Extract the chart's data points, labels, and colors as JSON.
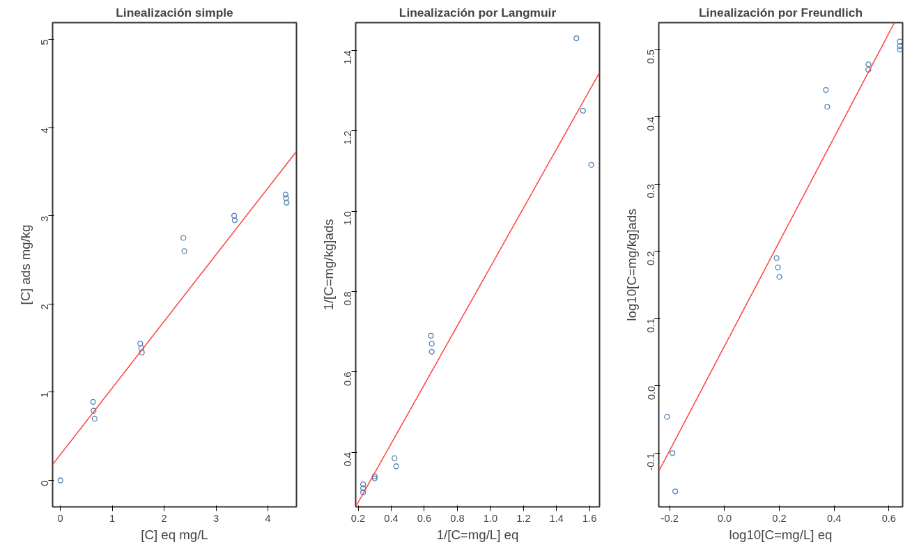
{
  "chart_data": [
    {
      "type": "scatter",
      "title": "Linealización simple",
      "xlabel": "[C] eq mg/L",
      "ylabel": "[C] ads mg/kg",
      "xlim": [
        -0.15,
        4.55
      ],
      "ylim": [
        -0.3,
        5.19
      ],
      "xticks": [
        0,
        1,
        2,
        3,
        4
      ],
      "yticks": [
        0,
        1,
        2,
        3,
        4,
        5
      ],
      "grid": false,
      "series": [
        {
          "marker": "circle",
          "color": "#4f7fb5",
          "x": [
            0,
            0.63,
            0.64,
            0.66,
            1.54,
            1.56,
            1.57,
            2.37,
            2.39,
            3.35,
            3.36,
            4.34,
            4.35,
            4.36
          ],
          "values": [
            0,
            0.89,
            0.79,
            0.7,
            1.55,
            1.5,
            1.45,
            2.75,
            2.6,
            3.0,
            2.95,
            3.24,
            3.2,
            3.15
          ]
        },
        {
          "type": "line",
          "marker": "none",
          "color": "#ff4040",
          "x": [
            -0.15,
            4.55
          ],
          "values": [
            0.18,
            3.73
          ]
        }
      ]
    },
    {
      "type": "scatter",
      "title": "Linealización por Langmuir",
      "xlabel": "1/[C=mg/L] eq",
      "ylabel": "1/[C=mg/kg]ads",
      "xlim": [
        0.185,
        1.66
      ],
      "ylim": [
        0.264,
        1.469
      ],
      "xticks": [
        0.2,
        0.4,
        0.6,
        0.8,
        {
          "value": 1,
          "label": "1.0"
        },
        1.2,
        1.4,
        1.6
      ],
      "yticks": [
        0.4,
        0.6,
        0.8,
        {
          "value": 1,
          "label": "1.0"
        },
        1.2,
        1.4
      ],
      "grid": false,
      "series": [
        {
          "marker": "circle",
          "color": "#4f7fb5",
          "x": [
            0.23,
            0.23,
            0.23,
            0.3,
            0.3,
            0.42,
            0.43,
            0.64,
            0.645,
            0.645,
            1.52,
            1.56,
            1.61
          ],
          "values": [
            0.31,
            0.3,
            0.32,
            0.34,
            0.335,
            0.385,
            0.365,
            0.69,
            0.67,
            0.65,
            1.43,
            1.25,
            1.115
          ]
        },
        {
          "type": "line",
          "marker": "none",
          "color": "#ff4040",
          "x": [
            0.185,
            1.66
          ],
          "values": [
            0.264,
            1.345
          ]
        }
      ]
    },
    {
      "type": "scatter",
      "title": "Linealización por Freundlich",
      "xlabel": "log10[C=mg/L] eq",
      "ylabel": "log10[C=mg/kg]ads",
      "xlim": [
        -0.24,
        0.65
      ],
      "ylim": [
        -0.18,
        0.54
      ],
      "xticks": [
        -0.2,
        {
          "value": 0,
          "label": "0.0"
        },
        0.2,
        0.4,
        0.6
      ],
      "yticks": [
        -0.1,
        {
          "value": 0,
          "label": "0.0"
        },
        0.1,
        0.2,
        0.3,
        0.4,
        0.5
      ],
      "grid": false,
      "series": [
        {
          "marker": "circle",
          "color": "#4f7fb5",
          "x": [
            -0.21,
            -0.19,
            -0.18,
            0.19,
            0.195,
            0.2,
            0.37,
            0.375,
            0.525,
            0.525,
            0.64,
            0.64,
            0.64
          ],
          "values": [
            -0.046,
            -0.1,
            -0.157,
            0.19,
            0.176,
            0.162,
            0.44,
            0.415,
            0.478,
            0.47,
            0.512,
            0.505,
            0.5
          ]
        },
        {
          "type": "line",
          "marker": "none",
          "color": "#ff4040",
          "x": [
            -0.24,
            0.62
          ],
          "values": [
            -0.127,
            0.54
          ]
        }
      ]
    }
  ]
}
